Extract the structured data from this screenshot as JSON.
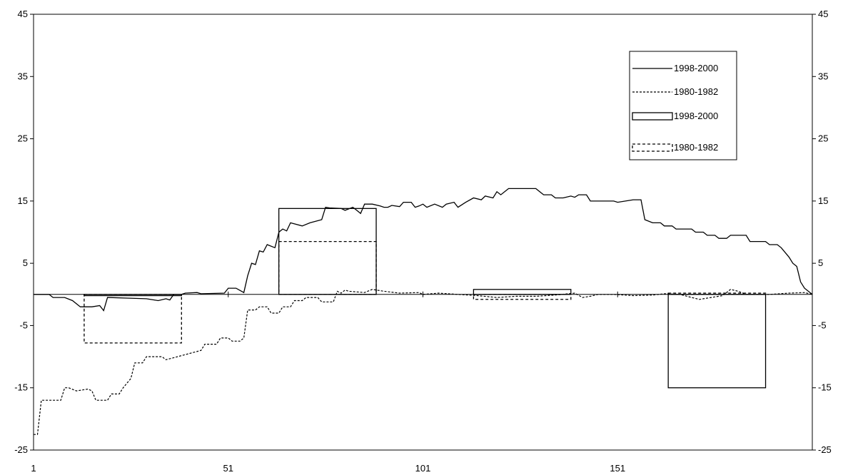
{
  "chart_data": {
    "type": "line",
    "title": "",
    "xlabel": "",
    "ylabel": "",
    "xlim": [
      1,
      201
    ],
    "ylim": [
      -25,
      45
    ],
    "x_ticks": [
      1,
      51,
      101,
      151
    ],
    "y_ticks": [
      -25,
      -15,
      -5,
      5,
      15,
      25,
      35,
      45
    ],
    "grid": false,
    "legend_position": "top-right",
    "legend": [
      {
        "label": "1998-2000",
        "style": "solid-line"
      },
      {
        "label": "1980-1982",
        "style": "dashed-line"
      },
      {
        "label": "1998-2000",
        "style": "solid-box"
      },
      {
        "label": "1980-1982",
        "style": "dashed-box"
      }
    ],
    "series": [
      {
        "name": "1998-2000",
        "style": "solid",
        "points": [
          [
            1,
            0
          ],
          [
            5,
            0
          ],
          [
            6,
            -0.5
          ],
          [
            9,
            -0.5
          ],
          [
            11,
            -1
          ],
          [
            13,
            -2
          ],
          [
            16,
            -2
          ],
          [
            18,
            -1.8
          ],
          [
            19,
            -2.6
          ],
          [
            20,
            -0.5
          ],
          [
            25,
            -0.6
          ],
          [
            30,
            -0.7
          ],
          [
            33,
            -1
          ],
          [
            35,
            -0.7
          ],
          [
            36,
            -0.9
          ],
          [
            37,
            0
          ],
          [
            39,
            0
          ],
          [
            40,
            0.2
          ],
          [
            43,
            0.3
          ],
          [
            44,
            0.1
          ],
          [
            50,
            0.2
          ],
          [
            51,
            1
          ],
          [
            53,
            1
          ],
          [
            55,
            0.3
          ],
          [
            56,
            3
          ],
          [
            57,
            5
          ],
          [
            58,
            4.8
          ],
          [
            59,
            7
          ],
          [
            60,
            6.8
          ],
          [
            61,
            8
          ],
          [
            63,
            7.5
          ],
          [
            64,
            10
          ],
          [
            65,
            10.5
          ],
          [
            66,
            10.2
          ],
          [
            67,
            11.5
          ],
          [
            70,
            11
          ],
          [
            72,
            11.5
          ],
          [
            75,
            12
          ],
          [
            76,
            14
          ],
          [
            77,
            13.9
          ],
          [
            80,
            13.8
          ],
          [
            81,
            13.5
          ],
          [
            83,
            14
          ],
          [
            84,
            13.5
          ],
          [
            85,
            13
          ],
          [
            86,
            14.5
          ],
          [
            88,
            14.5
          ],
          [
            90,
            14.2
          ],
          [
            91,
            14
          ],
          [
            92,
            14
          ],
          [
            93,
            14.3
          ],
          [
            95,
            14.1
          ],
          [
            96,
            14.8
          ],
          [
            98,
            14.8
          ],
          [
            99,
            14
          ],
          [
            100,
            14.2
          ],
          [
            101,
            14.5
          ],
          [
            102,
            14
          ],
          [
            104,
            14.5
          ],
          [
            106,
            14
          ],
          [
            107,
            14.5
          ],
          [
            109,
            14.8
          ],
          [
            110,
            14
          ],
          [
            112,
            14.8
          ],
          [
            114,
            15.5
          ],
          [
            116,
            15.2
          ],
          [
            117,
            15.8
          ],
          [
            119,
            15.5
          ],
          [
            120,
            16.5
          ],
          [
            121,
            16
          ],
          [
            123,
            17
          ],
          [
            125,
            17
          ],
          [
            130,
            17
          ],
          [
            131,
            16.5
          ],
          [
            132,
            16
          ],
          [
            134,
            16
          ],
          [
            135,
            15.5
          ],
          [
            137,
            15.5
          ],
          [
            139,
            15.8
          ],
          [
            140,
            15.6
          ],
          [
            141,
            16
          ],
          [
            143,
            16
          ],
          [
            144,
            15
          ],
          [
            150,
            15
          ],
          [
            151,
            14.8
          ],
          [
            155,
            15.2
          ],
          [
            157,
            15.2
          ],
          [
            158,
            12
          ],
          [
            160,
            11.5
          ],
          [
            162,
            11.5
          ],
          [
            163,
            11
          ],
          [
            165,
            11
          ],
          [
            166,
            10.5
          ],
          [
            170,
            10.5
          ],
          [
            171,
            10
          ],
          [
            173,
            10
          ],
          [
            174,
            9.5
          ],
          [
            176,
            9.5
          ],
          [
            177,
            9
          ],
          [
            179,
            9
          ],
          [
            180,
            9.5
          ],
          [
            184,
            9.5
          ],
          [
            185,
            8.5
          ],
          [
            189,
            8.5
          ],
          [
            190,
            8
          ],
          [
            192,
            8
          ],
          [
            193,
            7.5
          ],
          [
            195,
            6
          ],
          [
            196,
            5
          ],
          [
            197,
            4.5
          ],
          [
            198,
            2
          ],
          [
            199,
            1
          ],
          [
            200,
            0.5
          ],
          [
            201,
            0
          ]
        ]
      },
      {
        "name": "1980-1982",
        "style": "dashed",
        "points": [
          [
            1,
            -22.5
          ],
          [
            2,
            -22.5
          ],
          [
            3,
            -17
          ],
          [
            8,
            -17
          ],
          [
            9,
            -15
          ],
          [
            10,
            -15
          ],
          [
            12,
            -15.5
          ],
          [
            15,
            -15.2
          ],
          [
            16,
            -15.5
          ],
          [
            17,
            -17
          ],
          [
            20,
            -17
          ],
          [
            21,
            -16
          ],
          [
            23,
            -16
          ],
          [
            24,
            -15
          ],
          [
            26,
            -13.5
          ],
          [
            27,
            -11
          ],
          [
            29,
            -11
          ],
          [
            30,
            -10
          ],
          [
            34,
            -10
          ],
          [
            35,
            -10.5
          ],
          [
            38,
            -10
          ],
          [
            41,
            -9.5
          ],
          [
            44,
            -9
          ],
          [
            45,
            -8
          ],
          [
            48,
            -8
          ],
          [
            49,
            -7
          ],
          [
            51,
            -7
          ],
          [
            52,
            -7.5
          ],
          [
            54,
            -7.5
          ],
          [
            55,
            -7
          ],
          [
            56,
            -2.5
          ],
          [
            58,
            -2.5
          ],
          [
            59,
            -2
          ],
          [
            61,
            -2
          ],
          [
            62,
            -3
          ],
          [
            64,
            -3
          ],
          [
            65,
            -2
          ],
          [
            67,
            -2
          ],
          [
            68,
            -1
          ],
          [
            70,
            -1
          ],
          [
            71,
            -0.5
          ],
          [
            74,
            -0.5
          ],
          [
            75,
            -1.2
          ],
          [
            78,
            -1.2
          ],
          [
            79,
            0.5
          ],
          [
            80,
            0.2
          ],
          [
            81,
            0.7
          ],
          [
            82,
            0.5
          ],
          [
            86,
            0.3
          ],
          [
            88,
            0.8
          ],
          [
            91,
            0.5
          ],
          [
            95,
            0.2
          ],
          [
            100,
            0.3
          ],
          [
            101,
            0
          ],
          [
            105,
            0.2
          ],
          [
            110,
            0
          ],
          [
            115,
            -0.2
          ],
          [
            120,
            -0.5
          ],
          [
            125,
            -0.3
          ],
          [
            130,
            -0.3
          ],
          [
            135,
            -0.1
          ],
          [
            140,
            0.2
          ],
          [
            142,
            -0.5
          ],
          [
            144,
            -0.3
          ],
          [
            146,
            0
          ],
          [
            150,
            0
          ],
          [
            155,
            -0.2
          ],
          [
            160,
            -0.1
          ],
          [
            163,
            0.1
          ],
          [
            167,
            0
          ],
          [
            170,
            -0.5
          ],
          [
            172,
            -0.8
          ],
          [
            175,
            -0.5
          ],
          [
            178,
            -0.2
          ],
          [
            180,
            0.8
          ],
          [
            182,
            0.5
          ],
          [
            184,
            0
          ],
          [
            190,
            0
          ],
          [
            195,
            0.2
          ],
          [
            199,
            0.3
          ],
          [
            201,
            0
          ]
        ]
      }
    ],
    "boxes": [
      {
        "series": "1998-2000",
        "style": "solid",
        "x_start": 14,
        "x_end": 39,
        "value": -0.2
      },
      {
        "series": "1980-1982",
        "style": "dashed",
        "x_start": 14,
        "x_end": 39,
        "value": -7.8
      },
      {
        "series": "1998-2000",
        "style": "solid",
        "x_start": 64,
        "x_end": 89,
        "value": 13.8
      },
      {
        "series": "1980-1982",
        "style": "dashed",
        "x_start": 64,
        "x_end": 89,
        "value": 8.5
      },
      {
        "series": "1998-2000",
        "style": "solid",
        "x_start": 114,
        "x_end": 139,
        "value": 0.8
      },
      {
        "series": "1980-1982",
        "style": "dashed",
        "x_start": 114,
        "x_end": 139,
        "value": -0.8
      },
      {
        "series": "1998-2000",
        "style": "solid",
        "x_start": 164,
        "x_end": 189,
        "value": -15
      },
      {
        "series": "1980-1982",
        "style": "dashed",
        "x_start": 164,
        "x_end": 189,
        "value": 0.2
      }
    ]
  }
}
